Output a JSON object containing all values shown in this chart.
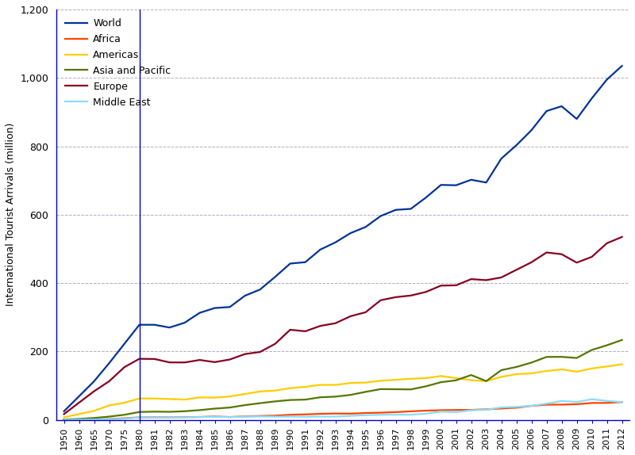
{
  "years": [
    1950,
    1960,
    1965,
    1970,
    1975,
    1980,
    1981,
    1982,
    1983,
    1984,
    1985,
    1986,
    1987,
    1988,
    1989,
    1990,
    1991,
    1992,
    1993,
    1994,
    1995,
    1996,
    1997,
    1998,
    1999,
    2000,
    2001,
    2002,
    2003,
    2004,
    2005,
    2006,
    2007,
    2008,
    2009,
    2010,
    2011,
    2012
  ],
  "world": [
    25,
    69,
    113,
    166,
    222,
    278,
    278,
    270,
    284,
    313,
    327,
    330,
    363,
    381,
    418,
    457,
    461,
    498,
    519,
    546,
    564,
    596,
    614,
    617,
    650,
    687,
    686,
    702,
    694,
    764,
    803,
    847,
    903,
    917,
    880,
    940,
    995,
    1035
  ],
  "africa": [
    0.5,
    0.8,
    1.4,
    2.4,
    4.7,
    7.3,
    7.5,
    7.5,
    7.9,
    8.5,
    9.7,
    8.3,
    10.2,
    11.3,
    12.4,
    14.8,
    16.0,
    17.6,
    18.5,
    18.2,
    20.0,
    21.0,
    22.6,
    24.9,
    26.9,
    28.2,
    28.9,
    29.1,
    30.7,
    33.2,
    35.5,
    40.9,
    44.4,
    44.5,
    45.8,
    49.4,
    49.5,
    52.0
  ],
  "americas": [
    7.5,
    16.7,
    26.3,
    42.3,
    50.0,
    62.3,
    62.5,
    60.9,
    59.2,
    65.6,
    65.1,
    68.4,
    75.6,
    82.9,
    85.6,
    92.8,
    96.6,
    102.2,
    102.2,
    107.7,
    109.0,
    114.5,
    117.0,
    120.0,
    122.0,
    128.2,
    122.0,
    116.0,
    113.0,
    125.8,
    133.5,
    136.0,
    142.9,
    147.7,
    140.7,
    150.3,
    156.0,
    162.7
  ],
  "asia_pacific": [
    1.0,
    2.8,
    5.5,
    9.5,
    14.8,
    23.0,
    24.0,
    23.5,
    25.2,
    28.5,
    32.9,
    36.0,
    43.1,
    48.7,
    54.0,
    58.0,
    59.2,
    66.0,
    67.9,
    73.0,
    81.8,
    89.9,
    89.5,
    89.0,
    98.1,
    110.1,
    115.6,
    131.1,
    113.3,
    145.4,
    154.6,
    167.4,
    184.0,
    184.2,
    180.9,
    204.4,
    218.0,
    233.6
  ],
  "europe": [
    16.8,
    50.4,
    83.7,
    113.0,
    153.9,
    178.5,
    178.0,
    168.0,
    167.8,
    175.1,
    168.8,
    176.5,
    192.4,
    198.5,
    222.2,
    263.5,
    259.0,
    274.7,
    282.5,
    303.0,
    314.6,
    349.8,
    358.8,
    363.5,
    374.0,
    392.6,
    393.4,
    411.5,
    408.5,
    416.4,
    438.7,
    460.8,
    489.4,
    484.4,
    459.7,
    476.6,
    516.4,
    534.8
  ],
  "middle_east": [
    0.2,
    0.5,
    1.0,
    1.7,
    3.3,
    7.1,
    7.2,
    7.3,
    7.5,
    8.2,
    8.7,
    8.0,
    9.5,
    10.0,
    9.5,
    9.5,
    9.0,
    9.5,
    9.6,
    11.6,
    13.7,
    14.7,
    15.0,
    15.0,
    18.0,
    24.1,
    22.6,
    28.0,
    29.5,
    36.3,
    37.9,
    40.9,
    47.5,
    55.2,
    52.4,
    60.3,
    55.4,
    52.0
  ],
  "colors": {
    "world": "#003399",
    "africa": "#ff4400",
    "americas": "#ffcc00",
    "asia_pacific": "#557700",
    "europe": "#880022",
    "middle_east": "#88ddff"
  },
  "vline_idx": 5,
  "ylabel": "International Tourist Arrivals (million)",
  "ylim": [
    0,
    1200
  ],
  "yticks": [
    0,
    200,
    400,
    600,
    800,
    1000,
    1200
  ],
  "ytick_labels": [
    "0",
    "200",
    "400",
    "600",
    "800",
    "1,000",
    "1,200"
  ],
  "legend_labels": [
    "World",
    "Africa",
    "Americas",
    "Asia and Pacific",
    "Europe",
    "Middle East"
  ],
  "background_color": "#ffffff",
  "grid_color": "#9999bb",
  "line_width": 1.6,
  "axis_color": "#0000cc",
  "tick_color": "#0000cc"
}
